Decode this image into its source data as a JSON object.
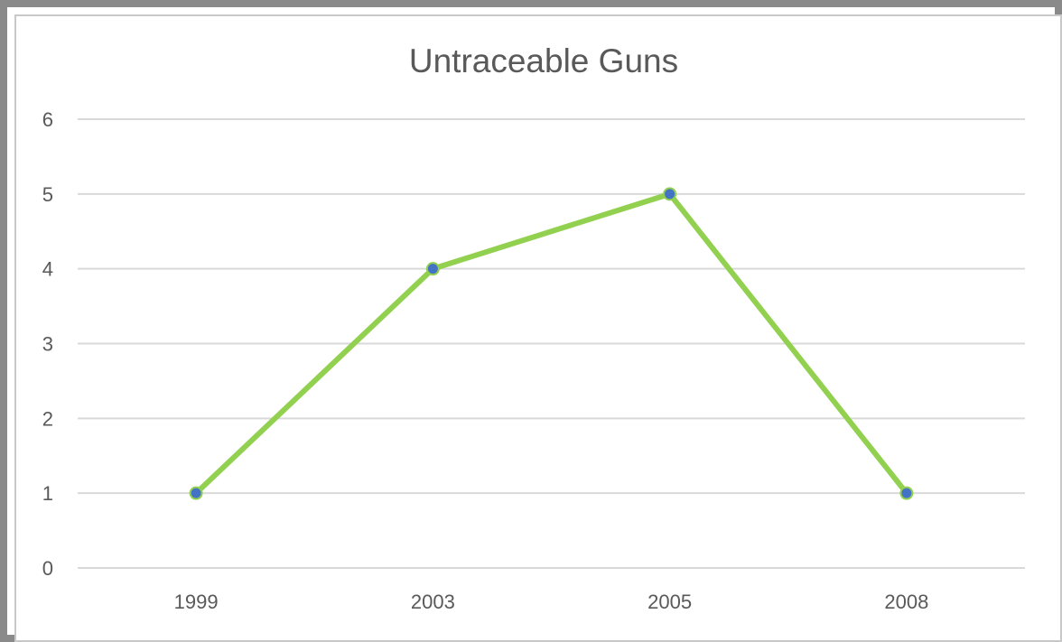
{
  "chart_data": {
    "type": "line",
    "title": "Untraceable Guns",
    "xlabel": "",
    "ylabel": "",
    "categories": [
      "1999",
      "2003",
      "2005",
      "2008"
    ],
    "series": [
      {
        "values": [
          1,
          4,
          5,
          1
        ],
        "color": "#92D050",
        "marker_color": "#4472C4"
      }
    ],
    "yticks": [
      "0",
      "1",
      "2",
      "3",
      "4",
      "5",
      "6"
    ],
    "ylim": [
      0,
      6
    ],
    "grid": true,
    "legend": "none",
    "gridline_color": "#d9d9d9",
    "text_color": "#595959"
  }
}
